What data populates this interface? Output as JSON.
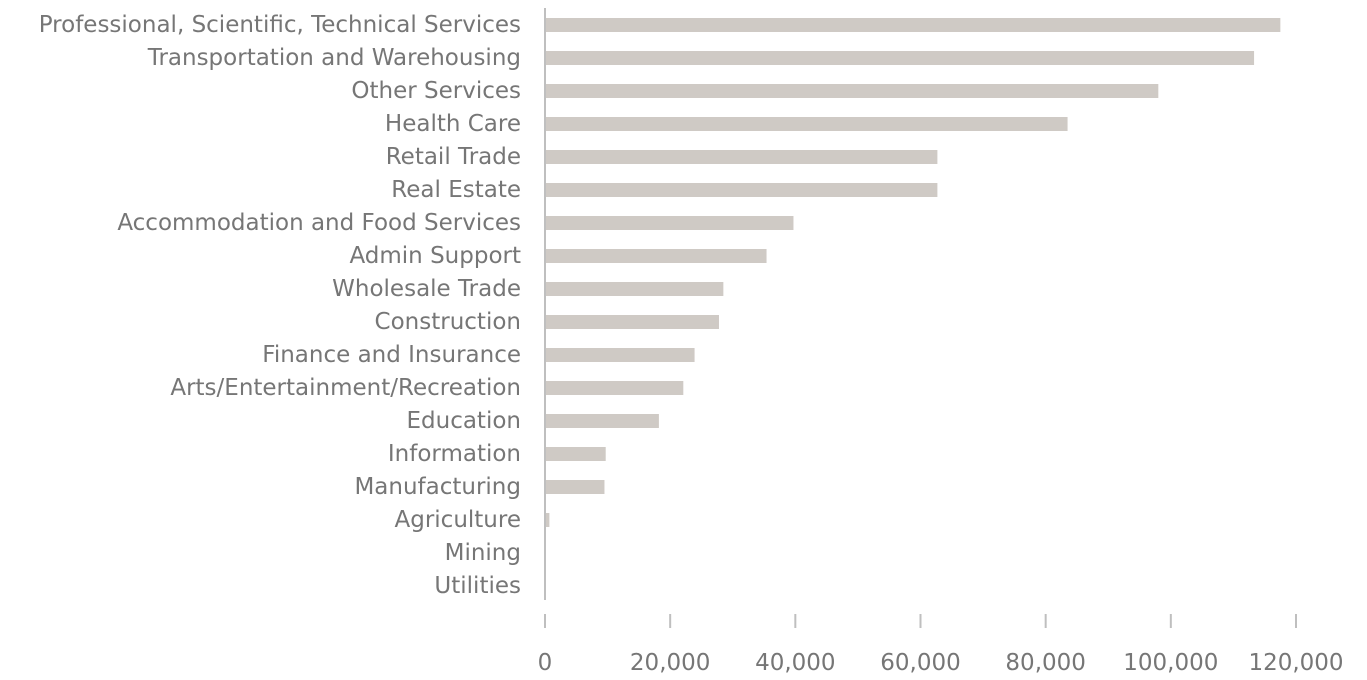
{
  "chart_data": {
    "type": "bar",
    "orientation": "horizontal",
    "title": "",
    "xlabel": "",
    "ylabel": "",
    "categories": [
      "Professional, Scientific, Technical Services",
      "Transportation and Warehousing",
      "Other Services",
      "Health Care",
      "Retail Trade",
      "Real Estate",
      "Accommodation and Food Services",
      "Admin Support",
      "Wholesale Trade",
      "Construction",
      "Finance and Insurance",
      "Arts/Entertainment/Recreation",
      "Education",
      "Information",
      "Manufacturing",
      "Agriculture",
      "Mining",
      "Utilities"
    ],
    "values": [
      117500,
      113300,
      98000,
      83500,
      62700,
      62700,
      39700,
      35400,
      28500,
      27800,
      23900,
      22100,
      18200,
      9700,
      9500,
      700,
      100,
      50
    ],
    "xlim": [
      0,
      120000
    ],
    "xticks": [
      0,
      20000,
      40000,
      60000,
      80000,
      100000,
      120000
    ],
    "xtick_labels": [
      "0",
      "20,000",
      "40,000",
      "60,000",
      "80,000",
      "100,000",
      "120,000"
    ],
    "grid": false,
    "legend": "none",
    "colors": {
      "bar": "#cfcac5",
      "axis": "#bfbfbf",
      "text": "#767676"
    }
  }
}
